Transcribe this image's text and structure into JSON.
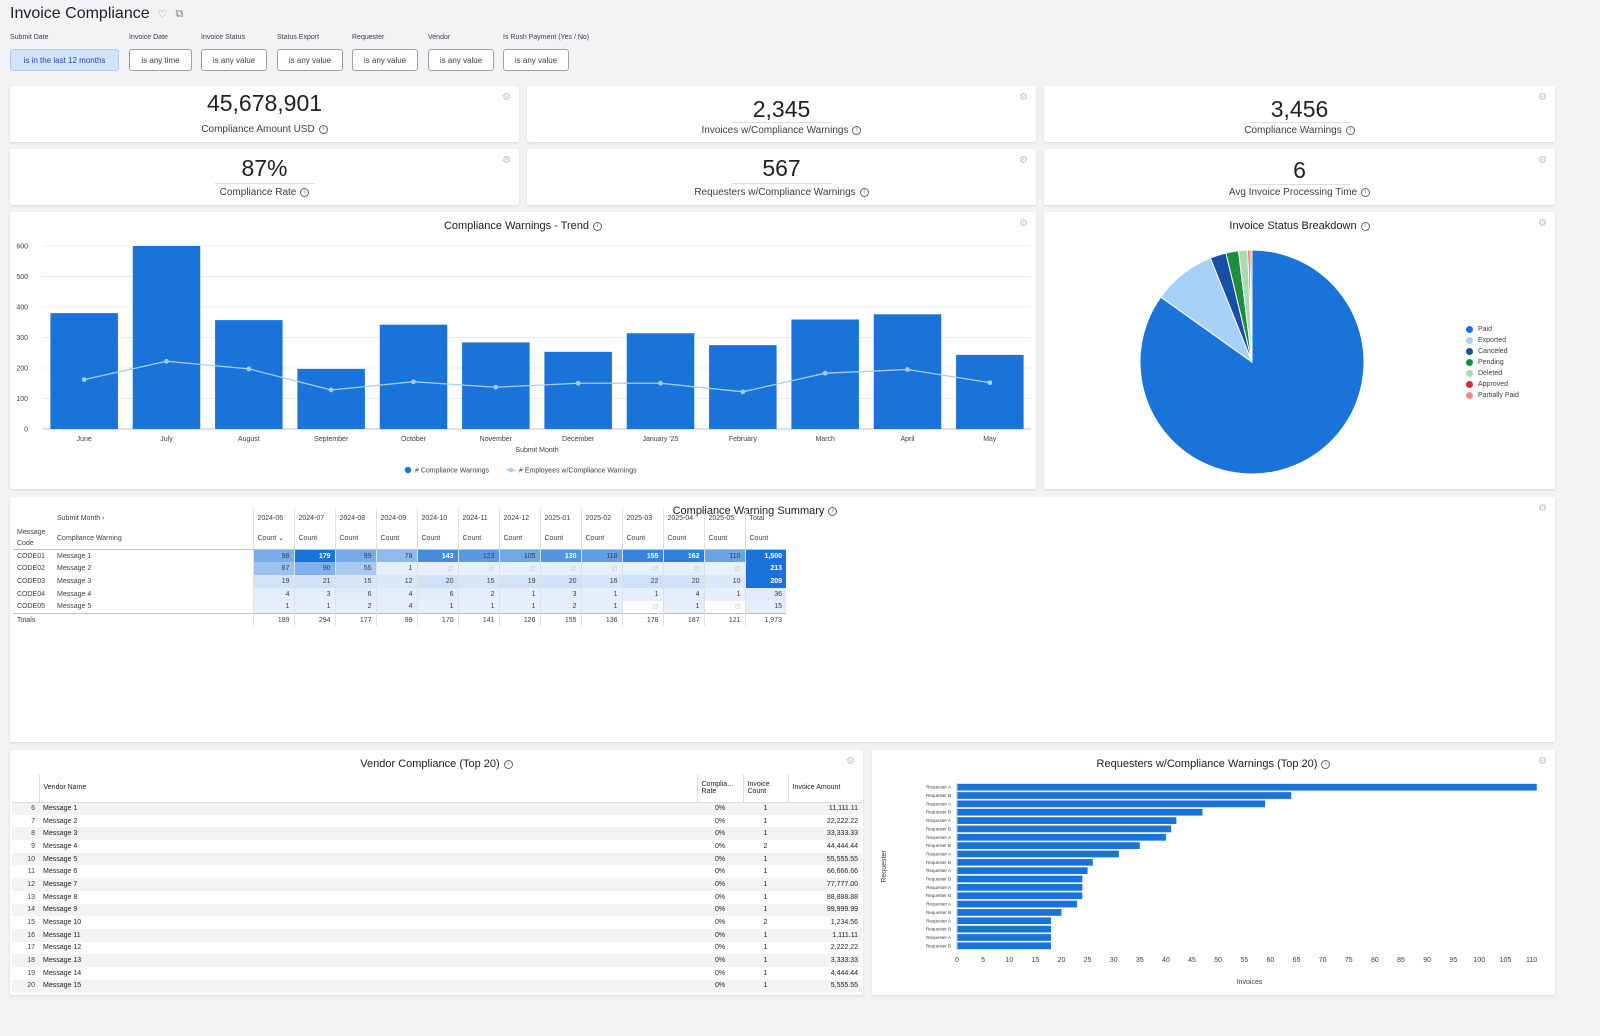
{
  "page": {
    "title": "Invoice Compliance"
  },
  "filters": [
    {
      "label": "Submit Date",
      "value": "is in the last 12 months"
    },
    {
      "label": "Invoice Date",
      "value": "is any time"
    },
    {
      "label": "Invoice Status",
      "value": "is any value"
    },
    {
      "label": "Status Export",
      "value": "is any value"
    },
    {
      "label": "Requester",
      "value": "is any value"
    },
    {
      "label": "Vendor",
      "value": "is any value"
    },
    {
      "label": "Is Rush Payment (Yes / No)",
      "value": "is any value"
    }
  ],
  "kpis": [
    {
      "value": "45,678,901",
      "label": "Compliance Amount USD"
    },
    {
      "value": "2,345",
      "label": "Invoices w/Compliance Warnings"
    },
    {
      "value": "3,456",
      "label": "Compliance Warnings"
    },
    {
      "value": "87%",
      "label": "Compliance Rate"
    },
    {
      "value": "567",
      "label": "Requesters w/Compliance Warnings"
    },
    {
      "value": "6",
      "label": "Avg Invoice Processing Time"
    }
  ],
  "trend": {
    "title": "Compliance Warnings - Trend",
    "xlabel": "Submit Month",
    "legend": [
      "# Compliance Warnings",
      "# Employees w/Compliance Warnings"
    ]
  },
  "pie": {
    "title": "Invoice Status Breakdown",
    "legend": [
      "Paid",
      "Exported",
      "Canceled",
      "Pending",
      "Deleted",
      "Approved",
      "Partially Paid"
    ]
  },
  "summary": {
    "title": "Compliance Warning Summary",
    "submit_month_label": "Submit Month",
    "message_code_label": "Message Code",
    "compliance_warning_label": "Compliance Warning",
    "months": [
      "2024-06",
      "2024-07",
      "2024-08",
      "2024-09",
      "2024-10",
      "2024-11",
      "2024-12",
      "2025-01",
      "2025-02",
      "2025-03",
      "2025-04",
      "2025-05",
      "Total"
    ],
    "count_label": "Count",
    "rows": [
      {
        "code": "CODE01",
        "msg": "Message 1",
        "vals": [
          "98",
          "179",
          "99",
          "78",
          "143",
          "123",
          "105",
          "130",
          "118",
          "155",
          "162",
          "110",
          "1,500"
        ]
      },
      {
        "code": "CODE02",
        "msg": "Message 2",
        "vals": [
          "67",
          "90",
          "55",
          "1",
          "∅",
          "∅",
          "∅",
          "∅",
          "∅",
          "∅",
          "∅",
          "∅",
          "213"
        ]
      },
      {
        "code": "CODE03",
        "msg": "Message 3",
        "vals": [
          "19",
          "21",
          "15",
          "12",
          "20",
          "15",
          "19",
          "20",
          "16",
          "22",
          "20",
          "10",
          "209"
        ]
      },
      {
        "code": "CODE04",
        "msg": "Message 4",
        "vals": [
          "4",
          "3",
          "6",
          "4",
          "6",
          "2",
          "1",
          "3",
          "1",
          "1",
          "4",
          "1",
          "36"
        ]
      },
      {
        "code": "CODE05",
        "msg": "Message 5",
        "vals": [
          "1",
          "1",
          "2",
          "4",
          "1",
          "1",
          "1",
          "2",
          "1",
          "∅",
          "1",
          "∅",
          "15"
        ]
      }
    ],
    "totals_label": "Totals",
    "totals": [
      "189",
      "294",
      "177",
      "99",
      "170",
      "141",
      "126",
      "155",
      "136",
      "178",
      "187",
      "121",
      "1,973"
    ]
  },
  "vendor": {
    "title": "Vendor Compliance (Top 20)",
    "headers": {
      "name": "Vendor Name",
      "rate1": "Complia…",
      "rate2": "Rate",
      "count1": "Invoice",
      "count2": "Count",
      "amount": "Invoice Amount"
    },
    "rows": [
      {
        "n": "6",
        "name": "Message 1",
        "rate": "0%",
        "count": "1",
        "amount": "11,111.11"
      },
      {
        "n": "7",
        "name": "Message 2",
        "rate": "0%",
        "count": "1",
        "amount": "22,222.22"
      },
      {
        "n": "8",
        "name": "Message 3",
        "rate": "0%",
        "count": "1",
        "amount": "33,333.33"
      },
      {
        "n": "9",
        "name": "Message 4",
        "rate": "0%",
        "count": "2",
        "amount": "44,444.44"
      },
      {
        "n": "10",
        "name": "Message 5",
        "rate": "0%",
        "count": "1",
        "amount": "55,555.55"
      },
      {
        "n": "11",
        "name": "Message 6",
        "rate": "0%",
        "count": "1",
        "amount": "66,666.66"
      },
      {
        "n": "12",
        "name": "Message 7",
        "rate": "0%",
        "count": "1",
        "amount": "77,777.00"
      },
      {
        "n": "13",
        "name": "Message 8",
        "rate": "0%",
        "count": "1",
        "amount": "88,888.88"
      },
      {
        "n": "14",
        "name": "Message 9",
        "rate": "0%",
        "count": "1",
        "amount": "99,999.99"
      },
      {
        "n": "15",
        "name": "Message 10",
        "rate": "0%",
        "count": "2",
        "amount": "1,234.56"
      },
      {
        "n": "16",
        "name": "Message 11",
        "rate": "0%",
        "count": "1",
        "amount": "1,111.11"
      },
      {
        "n": "17",
        "name": "Message 12",
        "rate": "0%",
        "count": "1",
        "amount": "2,222.22"
      },
      {
        "n": "18",
        "name": "Message 13",
        "rate": "0%",
        "count": "1",
        "amount": "3,333.33"
      },
      {
        "n": "19",
        "name": "Message 14",
        "rate": "0%",
        "count": "1",
        "amount": "4,444.44"
      },
      {
        "n": "20",
        "name": "Message 15",
        "rate": "0%",
        "count": "1",
        "amount": "5,555.55"
      }
    ]
  },
  "requesters": {
    "title": "Requesters w/Compliance Warnings (Top 20)",
    "ylabel": "Requester",
    "xlabel": "Invoices"
  },
  "chart_data": [
    {
      "type": "bar",
      "title": "Compliance Warnings - Trend",
      "xlabel": "Submit Month",
      "categories": [
        "June",
        "July",
        "August",
        "September",
        "October",
        "November",
        "December",
        "January '25",
        "February",
        "March",
        "April",
        "May"
      ],
      "series": [
        {
          "name": "# Compliance Warnings",
          "type": "bar",
          "values": [
            380,
            600,
            357,
            197,
            342,
            284,
            253,
            314,
            275,
            359,
            376,
            243
          ]
        },
        {
          "name": "# Employees w/Compliance Warnings",
          "type": "line",
          "values": [
            162,
            222,
            197,
            128,
            155,
            137,
            150,
            150,
            122,
            183,
            195,
            152
          ]
        }
      ],
      "ylim": [
        0,
        600
      ],
      "yticks": [
        0,
        100,
        200,
        300,
        400,
        500,
        600
      ],
      "legend": "bottom",
      "colors": {
        "bar": "#1a73d9",
        "line": "#a8cdf5"
      }
    },
    {
      "type": "pie",
      "title": "Invoice Status Breakdown",
      "categories": [
        "Paid",
        "Exported",
        "Canceled",
        "Pending",
        "Deleted",
        "Approved",
        "Partially Paid"
      ],
      "values": [
        84,
        9,
        2.3,
        1.8,
        1.3,
        0.3,
        0.3
      ],
      "colors": [
        "#1a73d9",
        "#a8d1fa",
        "#174ea6",
        "#1e8e3e",
        "#a8dab5",
        "#d93025",
        "#f28b82"
      ],
      "legend": "right"
    },
    {
      "type": "bar",
      "orientation": "horizontal",
      "title": "Requesters w/Compliance Warnings (Top 20)",
      "xlabel": "Invoices",
      "ylabel": "Requester",
      "categories": [
        "Requester A",
        "Requester B",
        "Requester A",
        "Requester B",
        "Requester A",
        "Requester B",
        "Requester A",
        "Requester B",
        "Requester A",
        "Requester B",
        "Requester A",
        "Requester B",
        "Requester A",
        "Requester B",
        "Requester A",
        "Requester B",
        "Requester A",
        "Requester B",
        "Requester A",
        "Requester B"
      ],
      "values": [
        111,
        64,
        59,
        47,
        42,
        41,
        40,
        35,
        31,
        26,
        25,
        24,
        24,
        24,
        23,
        20,
        18,
        18,
        18,
        18
      ],
      "xlim": [
        0,
        112
      ],
      "xticks": [
        0,
        5,
        10,
        15,
        20,
        25,
        30,
        35,
        40,
        45,
        50,
        55,
        60,
        65,
        70,
        75,
        80,
        85,
        90,
        95,
        100,
        105,
        110
      ],
      "color": "#1a73d9"
    }
  ]
}
